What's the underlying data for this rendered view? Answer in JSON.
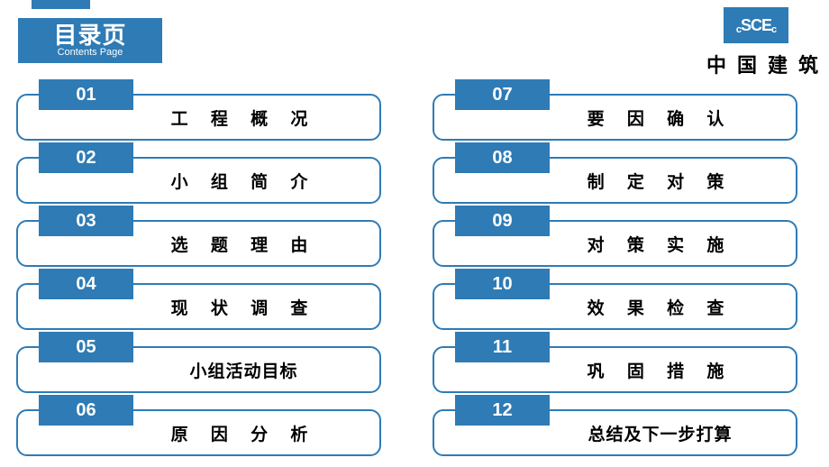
{
  "colors": {
    "primary": "#2e7bb5",
    "background": "#ffffff",
    "text": "#000000",
    "header_text": "#ffffff"
  },
  "header": {
    "title": "目录页",
    "subtitle": "Contents Page"
  },
  "logo": {
    "prefix": "c",
    "main": "SCE",
    "suffix": "c",
    "company": "中国建筑"
  },
  "toc": {
    "left": [
      {
        "num": "01",
        "label": "工 程 概 况",
        "tight": false
      },
      {
        "num": "02",
        "label": "小 组 简 介",
        "tight": false
      },
      {
        "num": "03",
        "label": "选 题 理 由",
        "tight": false
      },
      {
        "num": "04",
        "label": "现 状 调 查",
        "tight": false
      },
      {
        "num": "05",
        "label": "小组活动目标",
        "tight": true
      },
      {
        "num": "06",
        "label": "原 因 分 析",
        "tight": false
      }
    ],
    "right": [
      {
        "num": "07",
        "label": "要 因 确 认",
        "tight": false
      },
      {
        "num": "08",
        "label": "制 定 对 策",
        "tight": false
      },
      {
        "num": "09",
        "label": "对 策 实 施",
        "tight": false
      },
      {
        "num": "10",
        "label": "效 果 检 查",
        "tight": false
      },
      {
        "num": "11",
        "label": "巩 固 措 施",
        "tight": false
      },
      {
        "num": "12",
        "label": "总结及下一步打算",
        "tight": true
      }
    ]
  }
}
